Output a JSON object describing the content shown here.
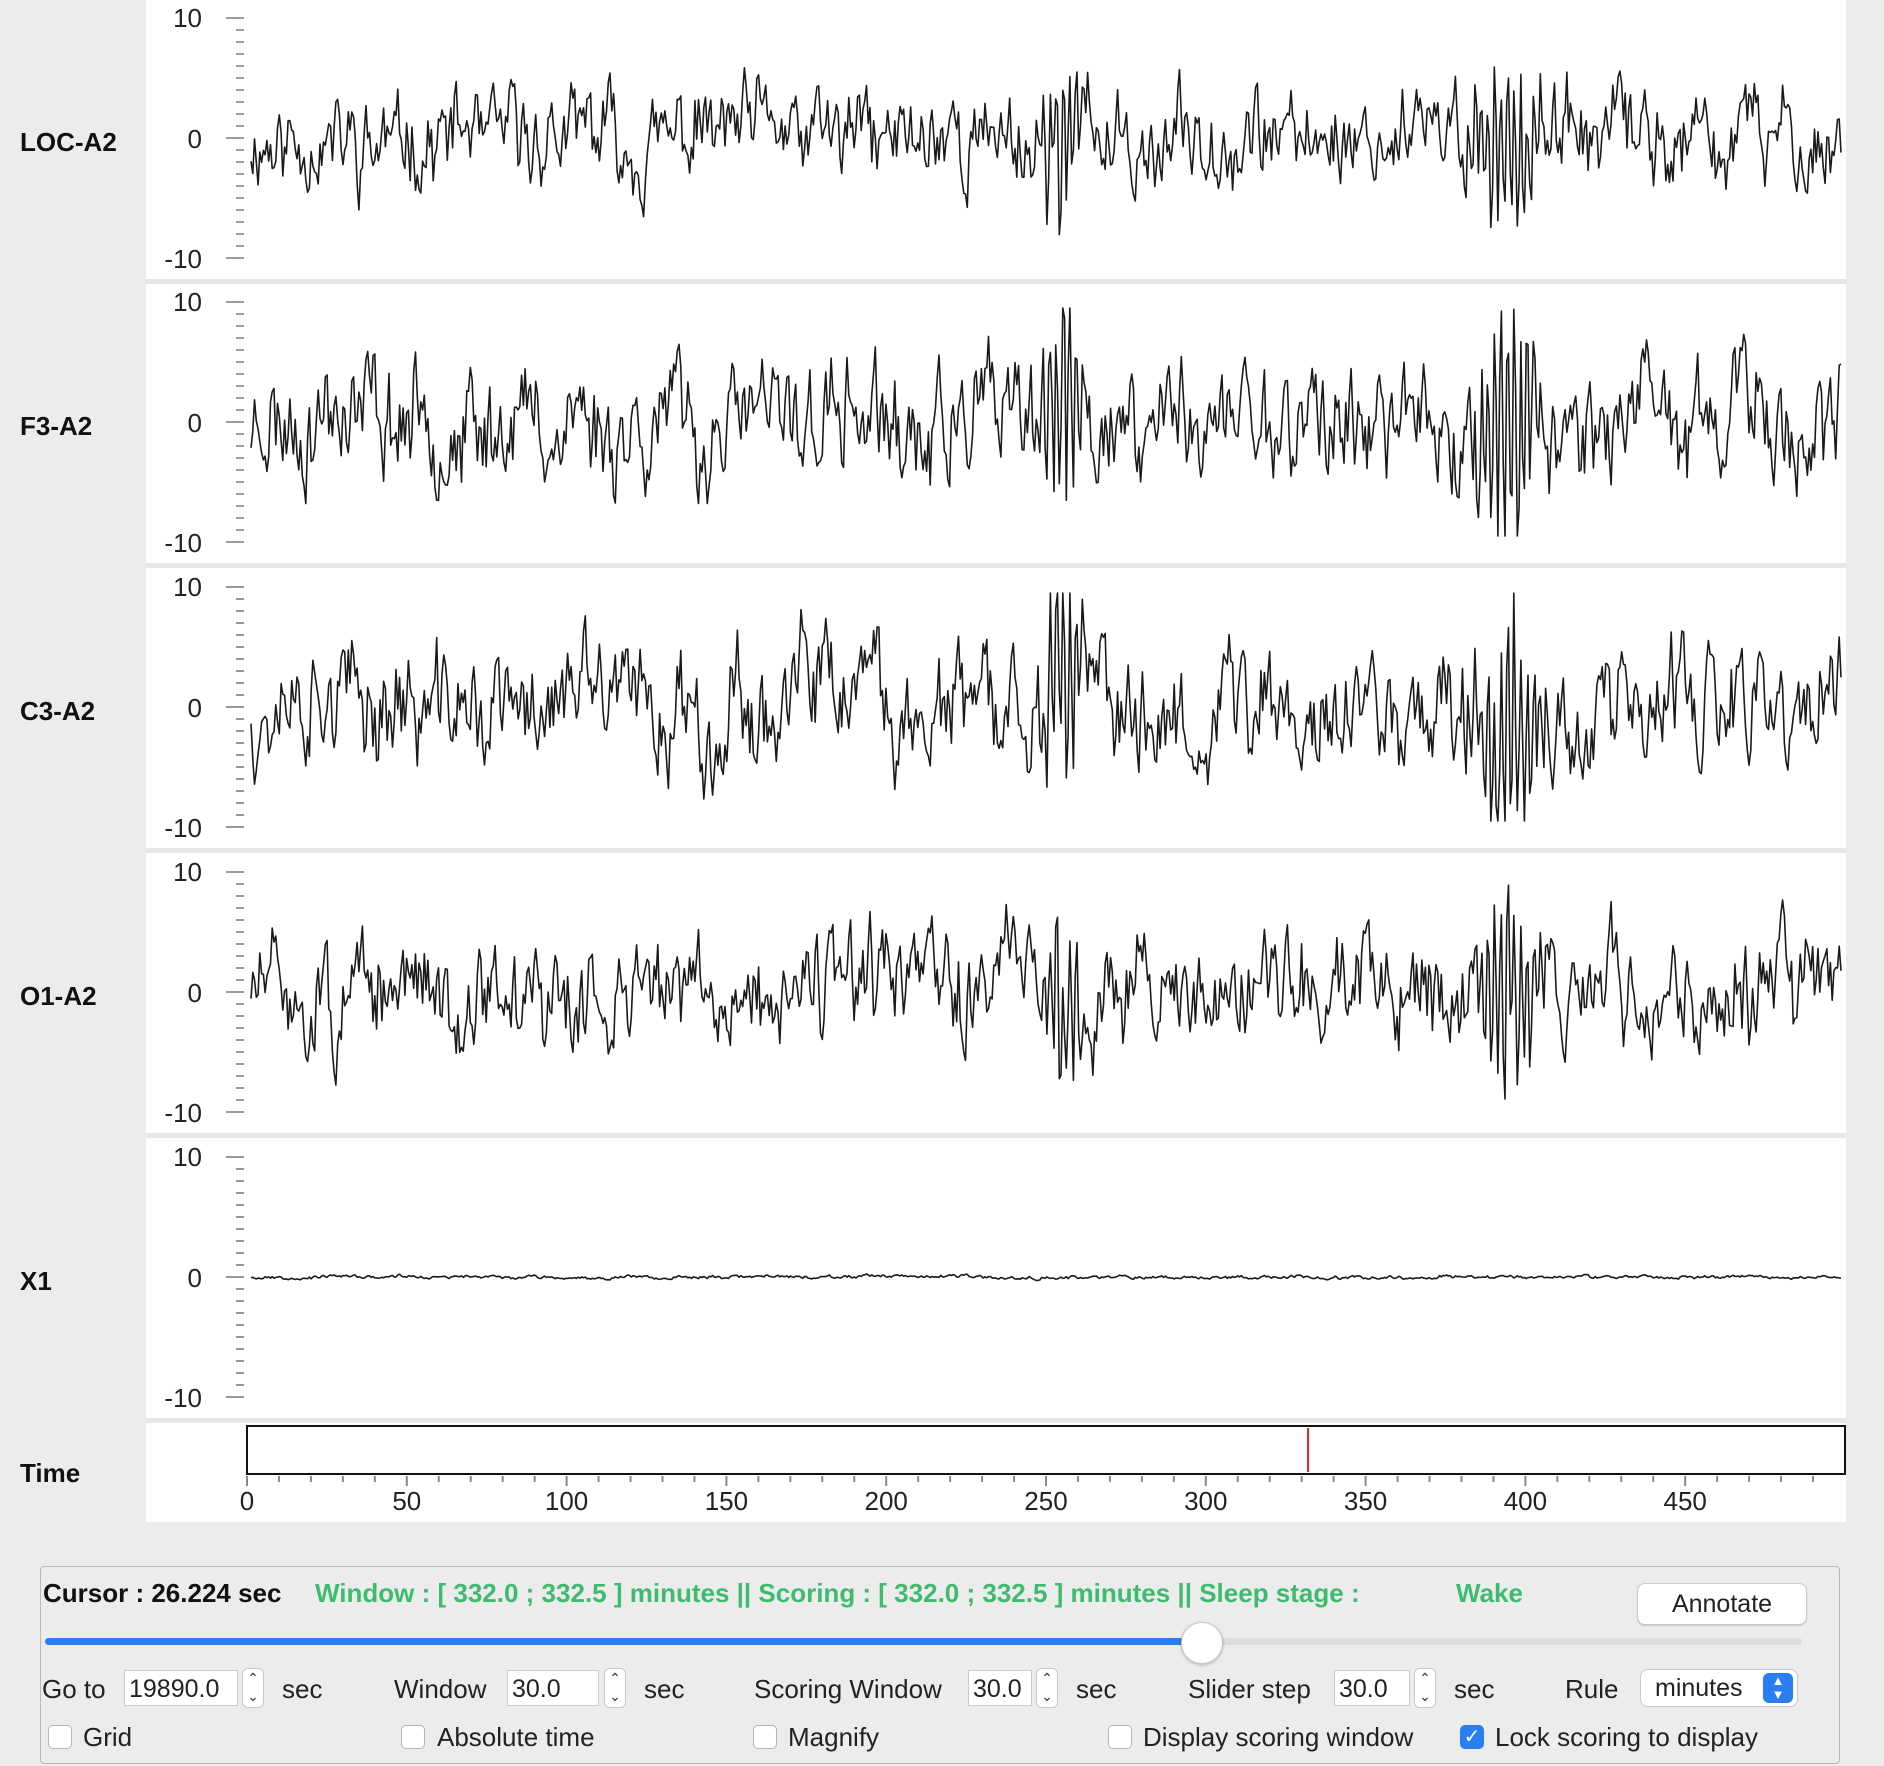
{
  "channels": [
    {
      "name": "LOC-A2",
      "amp": 4.0,
      "burst": 1.0,
      "seed": 11
    },
    {
      "name": "F3-A2",
      "amp": 5.0,
      "burst": 1.5,
      "seed": 23
    },
    {
      "name": "C3-A2",
      "amp": 5.0,
      "burst": 1.3,
      "seed": 37
    },
    {
      "name": "O1-A2",
      "amp": 4.5,
      "burst": 1.1,
      "seed": 51
    },
    {
      "name": "X1",
      "amp": 0.15,
      "burst": 0,
      "seed": 67
    }
  ],
  "y_ticks": {
    "top": "10",
    "mid": "0",
    "bottom": "-10"
  },
  "time_axis": {
    "label": "Time",
    "ticks": [
      "0",
      "50",
      "100",
      "150",
      "200",
      "250",
      "300",
      "350",
      "400",
      "450"
    ],
    "max": 500,
    "marker_value": 332
  },
  "status": {
    "cursor": "Cursor : 26.224 sec",
    "window_info": "Window : [ 332.0 ; 332.5 ] minutes || Scoring : [ 332.0 ; 332.5 ] minutes || Sleep stage :",
    "stage": "Wake"
  },
  "annotate_label": "Annotate",
  "slider_fraction": 0.658,
  "controls": {
    "goto_label": "Go to",
    "goto_value": "19890.0",
    "goto_unit": "sec",
    "window_label": "Window",
    "window_value": "30.0",
    "window_unit": "sec",
    "scoring_label": "Scoring Window",
    "scoring_value": "30.0",
    "scoring_unit": "sec",
    "step_label": "Slider step",
    "step_value": "30.0",
    "step_unit": "sec",
    "rule_label": "Rule",
    "rule_value": "minutes"
  },
  "checkboxes": {
    "grid": "Grid",
    "absolute_time": "Absolute time",
    "magnify": "Magnify",
    "display_scoring": "Display scoring window",
    "lock_scoring": "Lock scoring to display",
    "lock_checked": true
  },
  "colors": {
    "accent": "#2a7ef3",
    "status_green": "#3dbb6f",
    "marker": "#d62728",
    "trace": "#1a1a1a"
  }
}
